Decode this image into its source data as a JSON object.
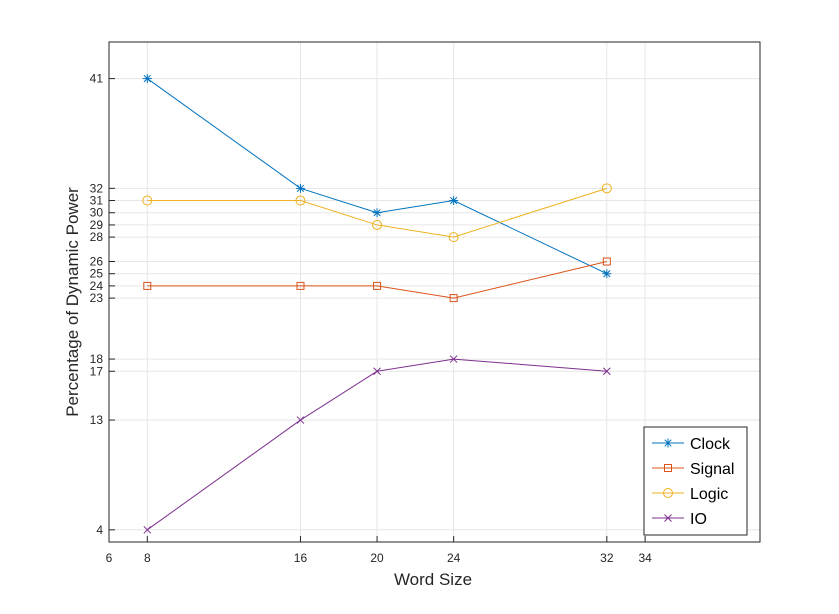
{
  "chart_data": {
    "type": "line",
    "xlabel": "Word Size",
    "ylabel": "Percentage of Dynamic Power",
    "xlim": [
      6,
      40
    ],
    "ylim": [
      3,
      44
    ],
    "xticks": [
      6,
      8,
      16,
      20,
      24,
      32,
      34
    ],
    "yticks": [
      4,
      13,
      17,
      18,
      23,
      24,
      25,
      26,
      28,
      29,
      30,
      31,
      32,
      41
    ],
    "grid": true,
    "legend_position": "bottom-right",
    "x": [
      8,
      16,
      20,
      24,
      32
    ],
    "series": [
      {
        "name": "Clock",
        "values": [
          41,
          32,
          30,
          31,
          25
        ],
        "color": "#0072BD",
        "marker": "asterisk"
      },
      {
        "name": "Signal",
        "values": [
          24,
          24,
          24,
          23,
          26
        ],
        "color": "#D95319",
        "marker": "square"
      },
      {
        "name": "Logic",
        "values": [
          31,
          31,
          29,
          28,
          32
        ],
        "color": "#EDB120",
        "marker": "circle"
      },
      {
        "name": "IO",
        "values": [
          4,
          13,
          17,
          18,
          17
        ],
        "color": "#7E2F8E",
        "marker": "x"
      }
    ]
  }
}
